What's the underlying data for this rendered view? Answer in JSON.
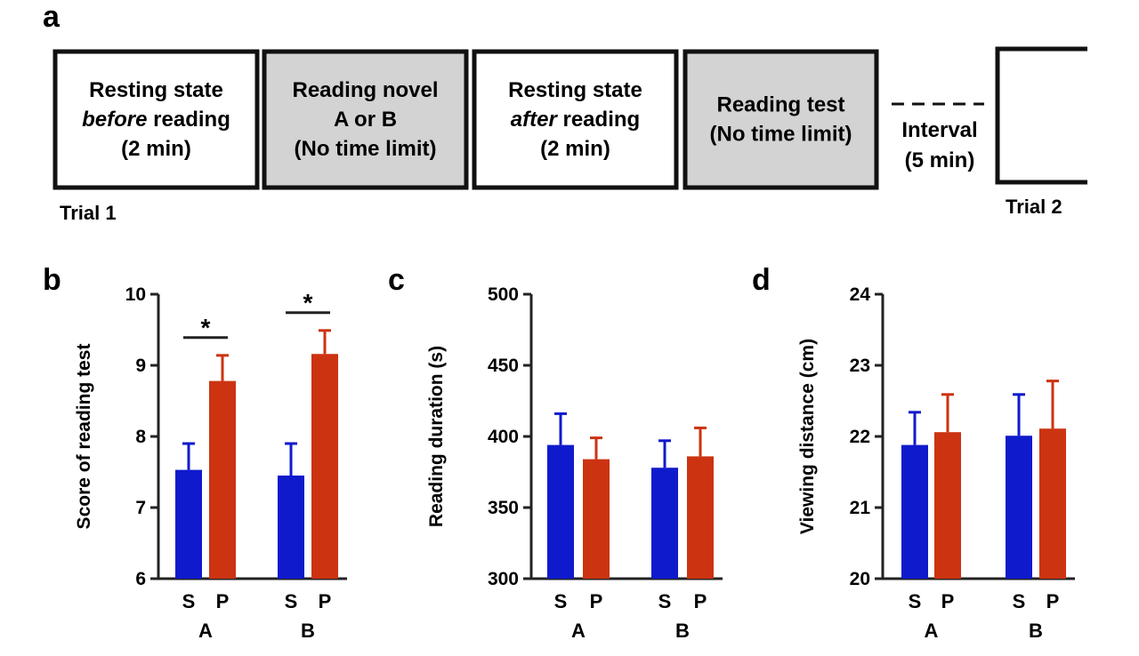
{
  "panel_a": {
    "letter": "a",
    "boxes": [
      {
        "lines": [
          {
            "parts": [
              {
                "t": "Resting state",
                "i": false
              }
            ]
          },
          {
            "parts": [
              {
                "t": "before",
                "i": true
              },
              {
                "t": " reading",
                "i": false
              }
            ]
          },
          {
            "parts": [
              {
                "t": "(2 min)",
                "i": false
              }
            ]
          }
        ],
        "fill": "#ffffff"
      },
      {
        "lines": [
          {
            "parts": [
              {
                "t": "Reading novel",
                "i": false
              }
            ]
          },
          {
            "parts": [
              {
                "t": "A or B",
                "i": false
              }
            ]
          },
          {
            "parts": [
              {
                "t": "(No time limit)",
                "i": false
              }
            ]
          }
        ],
        "fill": "#d3d3d3"
      },
      {
        "lines": [
          {
            "parts": [
              {
                "t": "Resting state",
                "i": false
              }
            ]
          },
          {
            "parts": [
              {
                "t": "after",
                "i": true
              },
              {
                "t": " reading",
                "i": false
              }
            ]
          },
          {
            "parts": [
              {
                "t": "(2 min)",
                "i": false
              }
            ]
          }
        ],
        "fill": "#ffffff"
      },
      {
        "lines": [
          {
            "parts": [
              {
                "t": "Reading test",
                "i": false
              }
            ]
          },
          {
            "parts": [
              {
                "t": "(No time limit)",
                "i": false
              }
            ]
          }
        ],
        "fill": "#d3d3d3"
      }
    ],
    "interval_lines": [
      "Interval",
      "(5 min)"
    ],
    "trial1": "Trial 1",
    "trial2": "Trial 2"
  },
  "colors": {
    "S": "#0f1acc",
    "P": "#cc3311",
    "axis": "#222222",
    "box_border": "#111111"
  },
  "chart_data": [
    {
      "type": "bar",
      "letter": "b",
      "ylabel": "Score of reading test",
      "ylim": [
        6,
        10
      ],
      "yticks": [
        6,
        7,
        8,
        9,
        10
      ],
      "groups": [
        "A",
        "B"
      ],
      "bars": [
        "S",
        "P"
      ],
      "series": [
        {
          "name": "S",
          "values": [
            7.53,
            7.45
          ],
          "errors": [
            0.37,
            0.45
          ]
        },
        {
          "name": "P",
          "values": [
            8.78,
            9.16
          ],
          "errors": [
            0.36,
            0.33
          ]
        }
      ],
      "significance": [
        {
          "group": "A",
          "label": "*"
        },
        {
          "group": "B",
          "label": "*"
        }
      ]
    },
    {
      "type": "bar",
      "letter": "c",
      "ylabel": "Reading duration (s)",
      "ylim": [
        300,
        500
      ],
      "yticks": [
        300,
        350,
        400,
        450,
        500
      ],
      "groups": [
        "A",
        "B"
      ],
      "bars": [
        "S",
        "P"
      ],
      "series": [
        {
          "name": "S",
          "values": [
            394,
            378
          ],
          "errors": [
            22,
            19
          ]
        },
        {
          "name": "P",
          "values": [
            384,
            386
          ],
          "errors": [
            15,
            20
          ]
        }
      ],
      "significance": []
    },
    {
      "type": "bar",
      "letter": "d",
      "ylabel": "Viewing distance (cm)",
      "ylim": [
        20,
        24
      ],
      "yticks": [
        20,
        21,
        22,
        23,
        24
      ],
      "groups": [
        "A",
        "B"
      ],
      "bars": [
        "S",
        "P"
      ],
      "series": [
        {
          "name": "S",
          "values": [
            21.88,
            22.01
          ],
          "errors": [
            0.46,
            0.58
          ]
        },
        {
          "name": "P",
          "values": [
            22.06,
            22.11
          ],
          "errors": [
            0.53,
            0.67
          ]
        }
      ],
      "significance": []
    }
  ]
}
